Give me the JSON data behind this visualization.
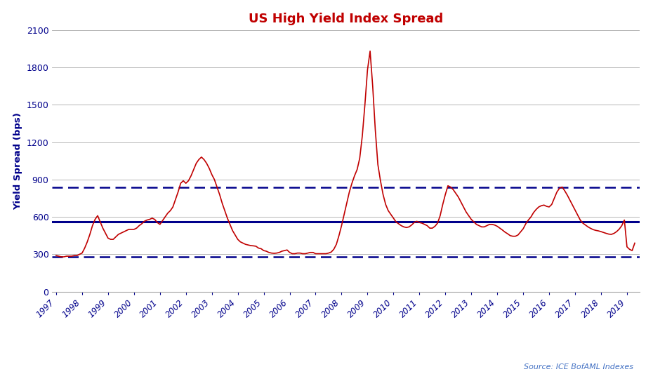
{
  "title": "US High Yield Index Spread",
  "title_color": "#C00000",
  "ylabel": "Yield Spread (bps)",
  "mean_val": 560,
  "plus1sd_val": 840,
  "minus1sd_val": 280,
  "ylim": [
    0,
    2100
  ],
  "yticks": [
    0,
    300,
    600,
    900,
    1200,
    1500,
    1800,
    2100
  ],
  "line_color": "#C00000",
  "mean_color": "#00008B",
  "sd_color": "#00008B",
  "background_color": "#FFFFFF",
  "grid_color": "#AAAAAA",
  "source_text": "Source: ICE BofAML Indexes",
  "source_color": "#4472C4",
  "axis_label_color": "#00008B",
  "tick_label_color": "#00008B",
  "xtick_labels": [
    "1997",
    "1998",
    "1999",
    "2000",
    "2001",
    "2002",
    "2003",
    "2004",
    "2005",
    "2006",
    "2007",
    "2008",
    "2009",
    "2010",
    "2011",
    "2012",
    "2013",
    "2014",
    "2015",
    "2016",
    "2017",
    "2018",
    "2019"
  ],
  "dates": [
    1997.0,
    1997.1,
    1997.2,
    1997.3,
    1997.4,
    1997.5,
    1997.6,
    1997.7,
    1997.8,
    1997.9,
    1998.0,
    1998.1,
    1998.2,
    1998.3,
    1998.4,
    1998.5,
    1998.6,
    1998.7,
    1998.8,
    1998.9,
    1999.0,
    1999.1,
    1999.2,
    1999.3,
    1999.4,
    1999.5,
    1999.6,
    1999.7,
    1999.8,
    1999.9,
    2000.0,
    2000.1,
    2000.2,
    2000.3,
    2000.4,
    2000.5,
    2000.6,
    2000.7,
    2000.8,
    2000.9,
    2001.0,
    2001.1,
    2001.2,
    2001.3,
    2001.4,
    2001.5,
    2001.6,
    2001.7,
    2001.8,
    2001.9,
    2002.0,
    2002.1,
    2002.2,
    2002.3,
    2002.4,
    2002.5,
    2002.6,
    2002.7,
    2002.8,
    2002.9,
    2003.0,
    2003.1,
    2003.2,
    2003.3,
    2003.4,
    2003.5,
    2003.6,
    2003.7,
    2003.8,
    2003.9,
    2004.0,
    2004.1,
    2004.2,
    2004.3,
    2004.4,
    2004.5,
    2004.6,
    2004.7,
    2004.8,
    2004.9,
    2005.0,
    2005.1,
    2005.2,
    2005.3,
    2005.4,
    2005.5,
    2005.6,
    2005.7,
    2005.8,
    2005.9,
    2006.0,
    2006.1,
    2006.2,
    2006.3,
    2006.4,
    2006.5,
    2006.6,
    2006.7,
    2006.8,
    2006.9,
    2007.0,
    2007.1,
    2007.2,
    2007.3,
    2007.4,
    2007.5,
    2007.6,
    2007.7,
    2007.8,
    2007.9,
    2008.0,
    2008.1,
    2008.2,
    2008.3,
    2008.4,
    2008.5,
    2008.6,
    2008.7,
    2008.8,
    2008.9,
    2009.0,
    2009.1,
    2009.2,
    2009.3,
    2009.4,
    2009.5,
    2009.6,
    2009.7,
    2009.8,
    2009.9,
    2010.0,
    2010.1,
    2010.2,
    2010.3,
    2010.4,
    2010.5,
    2010.6,
    2010.7,
    2010.8,
    2010.9,
    2011.0,
    2011.1,
    2011.2,
    2011.3,
    2011.4,
    2011.5,
    2011.6,
    2011.7,
    2011.8,
    2011.9,
    2012.0,
    2012.1,
    2012.2,
    2012.3,
    2012.4,
    2012.5,
    2012.6,
    2012.7,
    2012.8,
    2012.9,
    2013.0,
    2013.1,
    2013.2,
    2013.3,
    2013.4,
    2013.5,
    2013.6,
    2013.7,
    2013.8,
    2013.9,
    2014.0,
    2014.1,
    2014.2,
    2014.3,
    2014.4,
    2014.5,
    2014.6,
    2014.7,
    2014.8,
    2014.9,
    2015.0,
    2015.1,
    2015.2,
    2015.3,
    2015.4,
    2015.5,
    2015.6,
    2015.7,
    2015.8,
    2015.9,
    2016.0,
    2016.1,
    2016.2,
    2016.3,
    2016.4,
    2016.5,
    2016.6,
    2016.7,
    2016.8,
    2016.9,
    2017.0,
    2017.1,
    2017.2,
    2017.3,
    2017.4,
    2017.5,
    2017.6,
    2017.7,
    2017.8,
    2017.9,
    2018.0,
    2018.1,
    2018.2,
    2018.3,
    2018.4,
    2018.5,
    2018.6,
    2018.7,
    2018.8,
    2018.9,
    2019.0,
    2019.1,
    2019.2,
    2019.3
  ],
  "values": [
    290,
    285,
    280,
    280,
    285,
    285,
    285,
    290,
    290,
    300,
    310,
    350,
    400,
    460,
    530,
    580,
    610,
    560,
    510,
    470,
    430,
    420,
    420,
    440,
    460,
    470,
    480,
    490,
    500,
    500,
    500,
    510,
    530,
    545,
    565,
    575,
    580,
    590,
    580,
    555,
    540,
    570,
    600,
    630,
    650,
    680,
    740,
    800,
    870,
    890,
    870,
    890,
    930,
    980,
    1030,
    1060,
    1080,
    1060,
    1030,
    990,
    940,
    900,
    840,
    780,
    710,
    650,
    590,
    540,
    490,
    455,
    420,
    400,
    390,
    380,
    375,
    370,
    368,
    365,
    350,
    345,
    330,
    325,
    315,
    310,
    308,
    310,
    315,
    325,
    330,
    335,
    315,
    305,
    305,
    310,
    310,
    305,
    305,
    310,
    315,
    315,
    305,
    305,
    305,
    305,
    305,
    310,
    318,
    340,
    380,
    450,
    530,
    620,
    710,
    800,
    870,
    930,
    980,
    1070,
    1250,
    1500,
    1780,
    1930,
    1650,
    1300,
    1020,
    890,
    780,
    700,
    650,
    620,
    590,
    560,
    545,
    530,
    520,
    515,
    520,
    535,
    555,
    565,
    555,
    550,
    540,
    530,
    510,
    510,
    525,
    550,
    610,
    700,
    780,
    850,
    840,
    820,
    790,
    760,
    720,
    680,
    640,
    610,
    580,
    560,
    540,
    530,
    520,
    520,
    530,
    540,
    540,
    535,
    525,
    510,
    495,
    478,
    465,
    450,
    445,
    445,
    455,
    480,
    505,
    545,
    575,
    600,
    635,
    660,
    680,
    690,
    695,
    685,
    680,
    700,
    750,
    800,
    830,
    840,
    810,
    775,
    735,
    695,
    655,
    615,
    575,
    550,
    535,
    520,
    508,
    498,
    492,
    488,
    482,
    475,
    468,
    462,
    460,
    468,
    482,
    502,
    530,
    575,
    360,
    340,
    330,
    390
  ]
}
